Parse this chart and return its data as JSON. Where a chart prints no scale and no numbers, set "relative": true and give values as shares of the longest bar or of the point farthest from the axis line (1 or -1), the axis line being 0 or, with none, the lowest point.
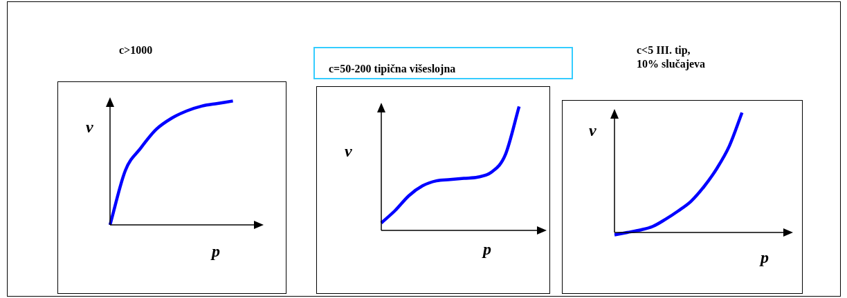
{
  "chart_data": [
    {
      "type": "line",
      "title": "c>1000",
      "xlabel": "p",
      "ylabel": "v",
      "relative": true,
      "color": "#0000ff",
      "categories": [
        null,
        null,
        null,
        null,
        null,
        null,
        null,
        null,
        null,
        null,
        null
      ],
      "values": [
        0,
        0.44,
        0.62,
        0.77,
        0.86,
        0.92,
        0.96,
        0.98,
        1.0,
        null,
        null
      ]
    },
    {
      "type": "line",
      "title": "c=50-200 tipična višeslojna",
      "xlabel": "p",
      "ylabel": "v",
      "relative": true,
      "color": "#0000ff",
      "categories": [
        null,
        null,
        null,
        null,
        null,
        null,
        null,
        null,
        null,
        null,
        null,
        null,
        null
      ],
      "values": [
        0.06,
        0.16,
        0.28,
        0.36,
        0.4,
        0.41,
        0.42,
        0.43,
        0.47,
        0.61,
        1.0,
        null,
        null
      ]
    },
    {
      "type": "line",
      "title": "c<5     III. tip,\n10% slučajeva",
      "xlabel": "p",
      "ylabel": "v",
      "relative": true,
      "color": "#0000ff",
      "categories": [
        null,
        null,
        null,
        null,
        null,
        null,
        null,
        null,
        null,
        null,
        null,
        null,
        null,
        null,
        null
      ],
      "values": [
        -0.02,
        0,
        0.02,
        0.05,
        0.11,
        0.18,
        0.26,
        0.38,
        0.53,
        0.72,
        1.0,
        null,
        null,
        null,
        null
      ]
    }
  ]
}
